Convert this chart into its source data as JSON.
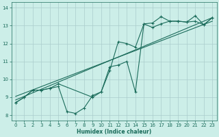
{
  "xlabel": "Humidex (Indice chaleur)",
  "bg_color": "#cceee8",
  "grid_color": "#aacccc",
  "line_color": "#1a6b5a",
  "xlim": [
    -0.5,
    23.5
  ],
  "ylim": [
    7.7,
    14.3
  ],
  "xticks": [
    0,
    1,
    2,
    3,
    4,
    5,
    6,
    7,
    8,
    9,
    10,
    11,
    12,
    13,
    14,
    15,
    16,
    17,
    18,
    19,
    20,
    21,
    22,
    23
  ],
  "yticks": [
    8,
    9,
    10,
    11,
    12,
    13,
    14
  ],
  "series1_x": [
    0,
    1,
    2,
    3,
    4,
    5,
    6,
    7,
    8,
    9,
    10,
    11,
    12,
    13,
    14,
    15,
    16,
    17,
    18,
    19,
    20,
    21,
    22,
    23
  ],
  "series1_y": [
    8.7,
    9.0,
    9.4,
    9.4,
    9.5,
    9.6,
    8.2,
    8.1,
    8.4,
    9.1,
    9.3,
    10.7,
    10.8,
    11.0,
    9.3,
    13.1,
    13.15,
    13.5,
    13.25,
    13.25,
    13.2,
    13.55,
    13.05,
    13.45
  ],
  "series2_x": [
    0,
    1,
    2,
    3,
    4,
    5,
    9,
    10,
    11,
    12,
    13,
    14,
    15,
    16,
    17,
    18,
    19,
    20,
    21,
    22,
    23
  ],
  "series2_y": [
    8.7,
    9.0,
    9.4,
    9.4,
    9.5,
    9.75,
    9.0,
    9.3,
    10.5,
    12.1,
    12.0,
    11.8,
    13.1,
    12.9,
    13.1,
    13.25,
    13.25,
    13.2,
    13.25,
    13.05,
    13.45
  ],
  "series3_x": [
    0,
    23
  ],
  "series3_y": [
    8.85,
    13.45
  ],
  "series4_x": [
    0,
    23
  ],
  "series4_y": [
    9.05,
    13.25
  ]
}
